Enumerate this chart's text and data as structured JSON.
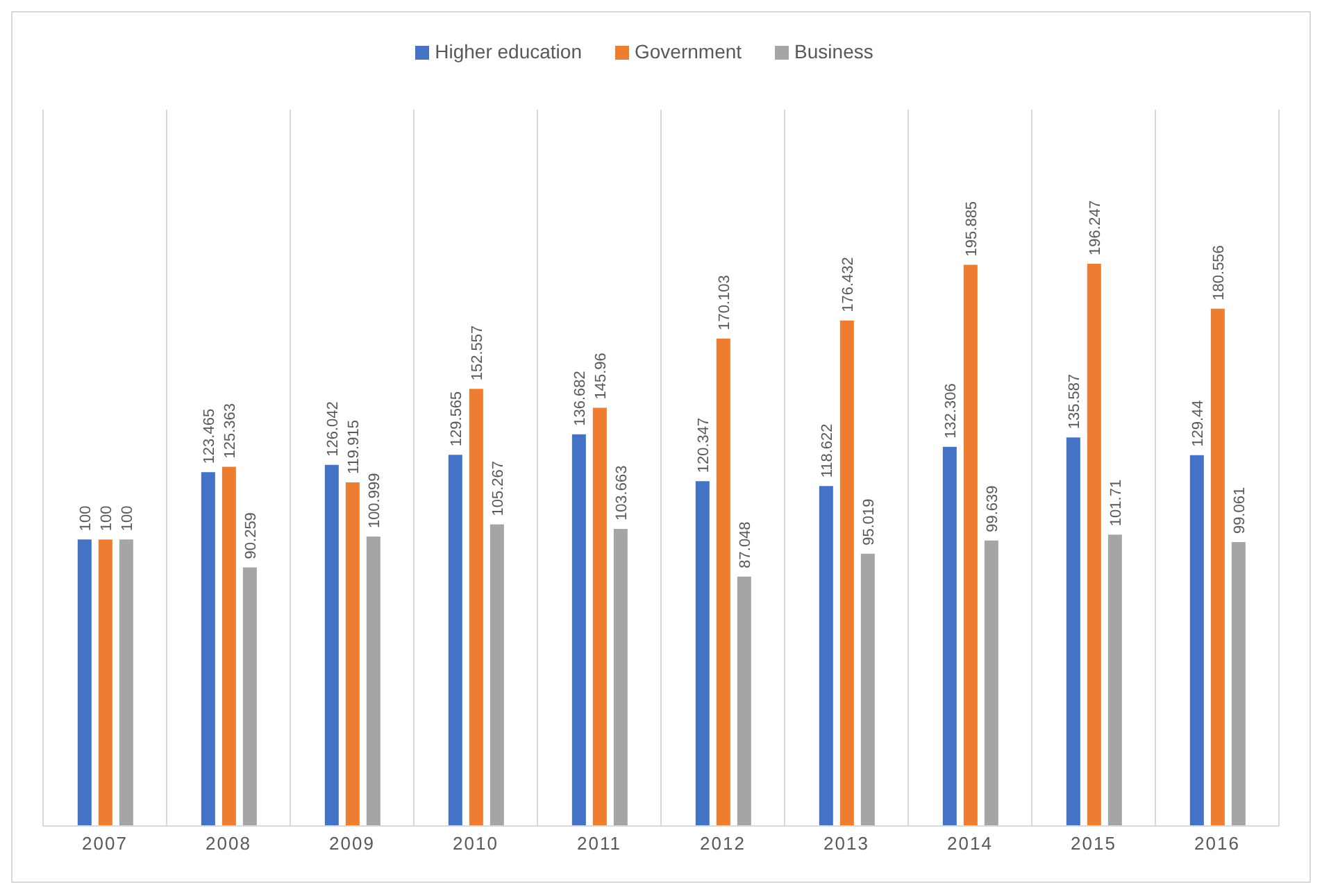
{
  "chart_data": {
    "type": "bar",
    "categories": [
      "2007",
      "2008",
      "2009",
      "2010",
      "2011",
      "2012",
      "2013",
      "2014",
      "2015",
      "2016"
    ],
    "series": [
      {
        "name": "Higher education",
        "color": "#4472c4",
        "values": [
          100,
          123.465,
          126.042,
          129.565,
          136.682,
          120.347,
          118.622,
          132.306,
          135.587,
          129.44
        ]
      },
      {
        "name": "Government",
        "color": "#ed7d31",
        "values": [
          100,
          125.363,
          119.915,
          152.557,
          145.96,
          170.103,
          176.432,
          195.885,
          196.247,
          180.556
        ]
      },
      {
        "name": "Business",
        "color": "#a5a5a5",
        "values": [
          100,
          90.259,
          100.999,
          105.267,
          103.663,
          87.048,
          95.019,
          99.639,
          101.71,
          99.061
        ]
      }
    ],
    "ylim": [
      0,
      250
    ],
    "tick_labels": "x",
    "grid": "x",
    "legend": "top",
    "data_labels": true
  }
}
